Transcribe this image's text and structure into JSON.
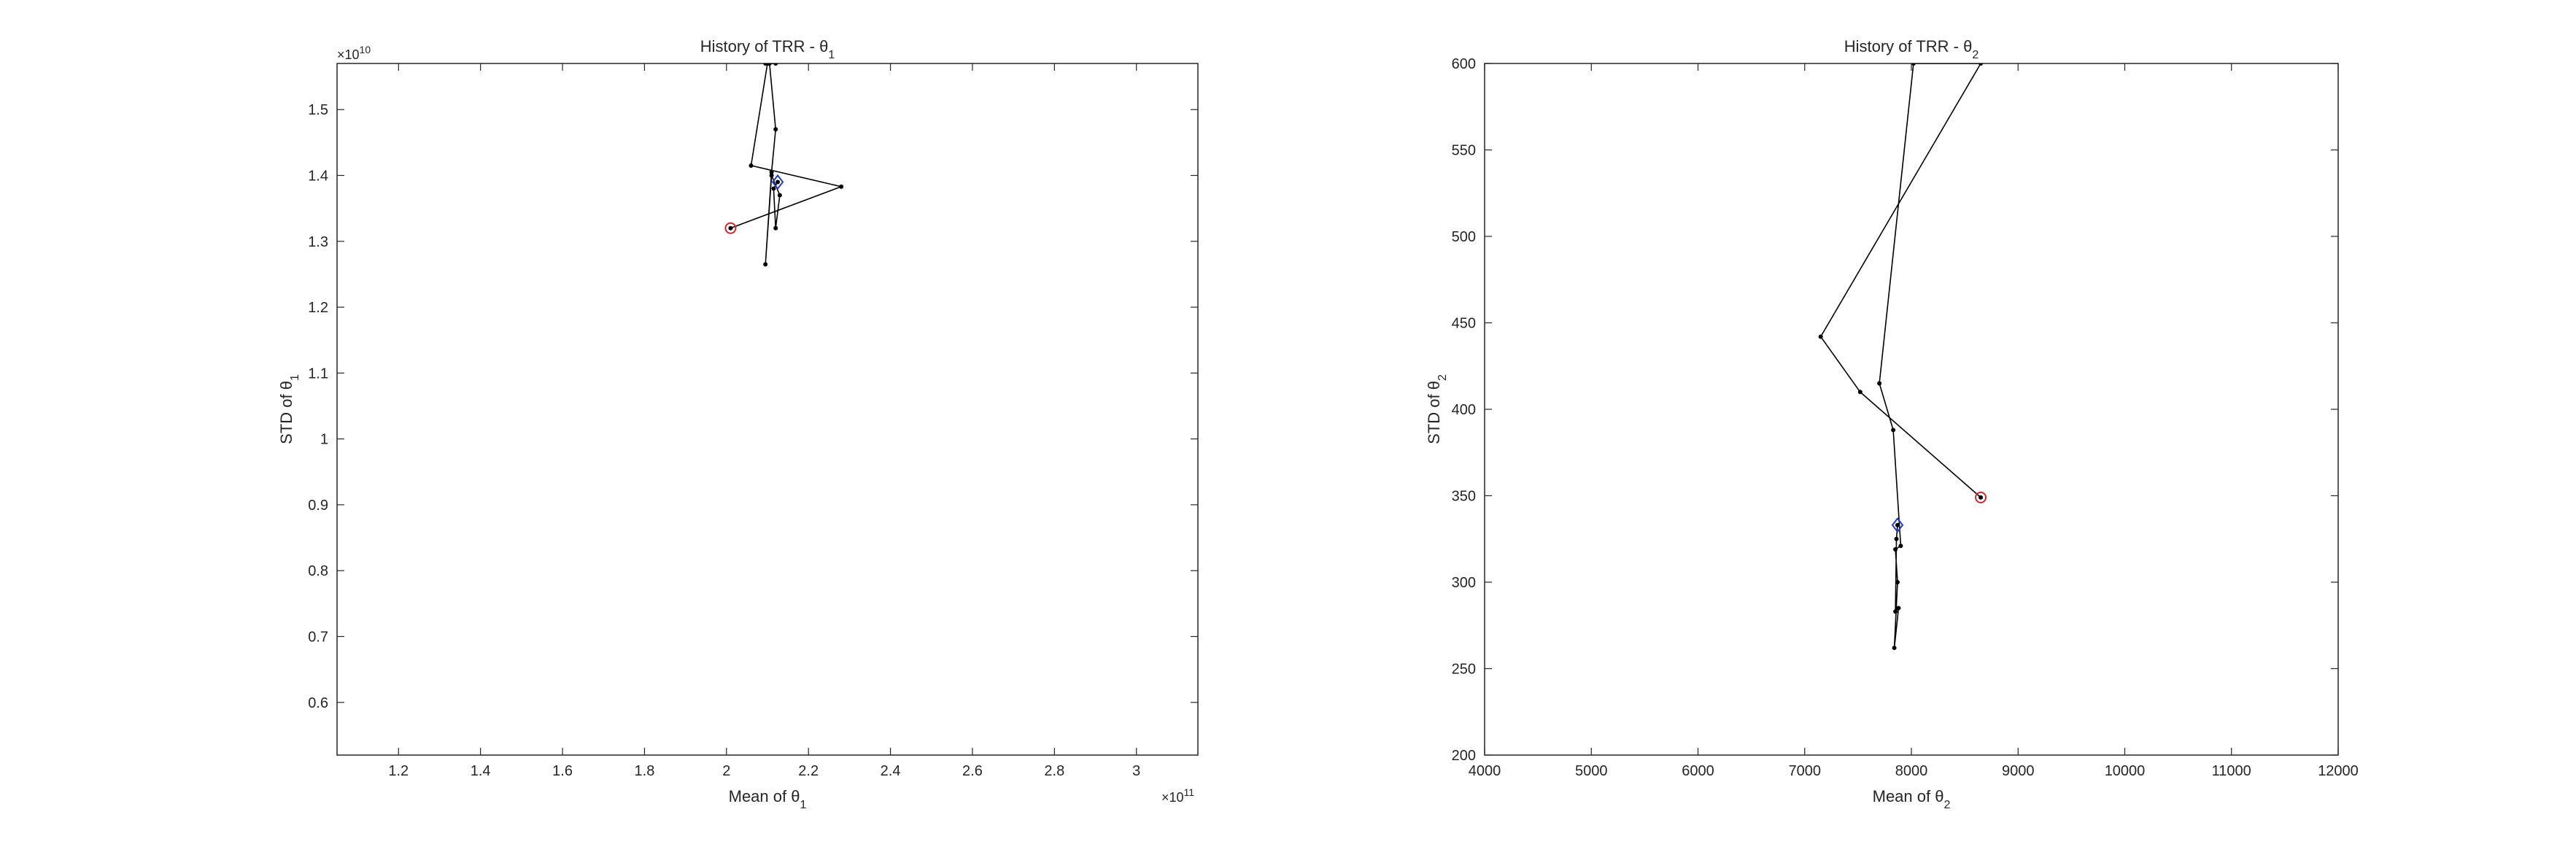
{
  "chart_data": [
    {
      "type": "line",
      "title": "History of TRR - θ",
      "title_sub": "1",
      "xlabel": "Mean of θ",
      "xlabel_sub": "1",
      "ylabel": "STD of θ",
      "ylabel_sub": "1",
      "x_multiplier": "×10",
      "x_multiplier_exp": "11",
      "y_multiplier": "×10",
      "y_multiplier_exp": "10",
      "xlim": [
        1.05,
        3.15
      ],
      "ylim": [
        0.52,
        1.57
      ],
      "x_ticks": [
        1.2,
        1.4,
        1.6,
        1.8,
        2.0,
        2.2,
        2.4,
        2.6,
        2.8,
        3.0
      ],
      "x_tick_labels": [
        "1.2",
        "1.4",
        "1.6",
        "1.8",
        "2",
        "2.2",
        "2.4",
        "2.6",
        "2.8",
        "3"
      ],
      "y_ticks": [
        0.6,
        0.7,
        0.8,
        0.9,
        1.0,
        1.1,
        1.2,
        1.3,
        1.4,
        1.5
      ],
      "y_tick_labels": [
        "0.6",
        "0.7",
        "0.8",
        "0.9",
        "1",
        "1.1",
        "1.2",
        "1.3",
        "1.4",
        "1.5"
      ],
      "grid": false,
      "line_color": "#000000",
      "start_marker_color": "#d62728",
      "end_marker_color": "#1f3fbf",
      "series": [
        {
          "x": [
            2.01,
            2.28,
            2.06,
            2.1,
            2.12,
            2.1,
            2.095,
            2.105,
            2.12,
            2.11,
            2.095,
            2.11,
            2.13,
            2.12,
            2.115,
            2.125
          ],
          "y": [
            1.32,
            1.383,
            1.415,
            1.57,
            1.57,
            1.57,
            1.57,
            1.57,
            1.47,
            1.405,
            1.265,
            1.4,
            1.37,
            1.32,
            1.38,
            1.39
          ]
        }
      ],
      "start_point": {
        "x": 2.01,
        "y": 1.32
      },
      "end_point": {
        "x": 2.125,
        "y": 1.39
      }
    },
    {
      "type": "line",
      "title": "History of TRR - θ",
      "title_sub": "2",
      "xlabel": "Mean of θ",
      "xlabel_sub": "2",
      "ylabel": "STD of θ",
      "ylabel_sub": "2",
      "x_multiplier": "",
      "x_multiplier_exp": "",
      "y_multiplier": "",
      "y_multiplier_exp": "",
      "xlim": [
        4000,
        12000
      ],
      "ylim": [
        200,
        600
      ],
      "x_ticks": [
        4000,
        5000,
        6000,
        7000,
        8000,
        9000,
        10000,
        11000,
        12000
      ],
      "x_tick_labels": [
        "4000",
        "5000",
        "6000",
        "7000",
        "8000",
        "9000",
        "10000",
        "11000",
        "12000"
      ],
      "y_ticks": [
        200,
        250,
        300,
        350,
        400,
        450,
        500,
        550,
        600
      ],
      "y_tick_labels": [
        "200",
        "250",
        "300",
        "350",
        "400",
        "450",
        "500",
        "550",
        "600"
      ],
      "grid": false,
      "line_color": "#000000",
      "start_marker_color": "#d62728",
      "end_marker_color": "#1f3fbf",
      "series": [
        {
          "x": [
            8650,
            7520,
            7150,
            8650,
            8020,
            7700,
            7830,
            7900,
            7850,
            7870,
            7840,
            7880,
            7850,
            7860,
            7870
          ],
          "y": [
            349,
            410,
            442,
            600,
            600,
            415,
            388,
            321,
            319,
            300,
            262,
            285,
            283,
            325,
            333
          ]
        }
      ],
      "start_point": {
        "x": 8650,
        "y": 349
      },
      "end_point": {
        "x": 7870,
        "y": 333
      }
    }
  ]
}
